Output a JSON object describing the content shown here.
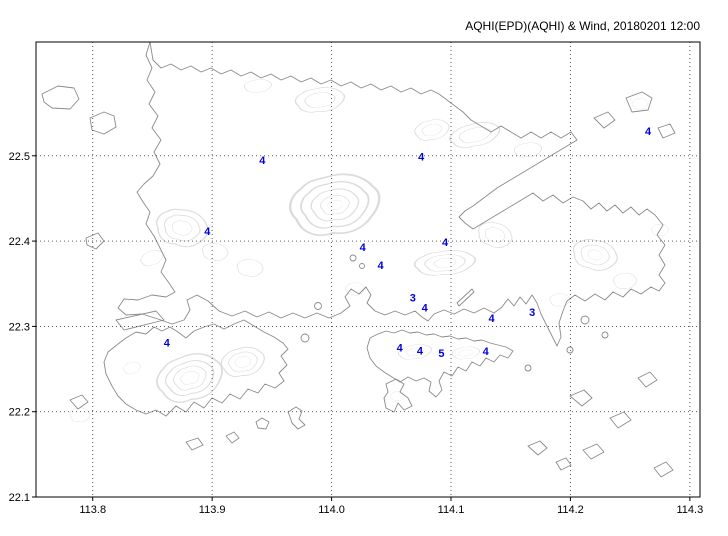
{
  "chart_data": {
    "type": "map-scatter",
    "title": "AQHI(EPD)(AQHI) & Wind, 20180201 12:00",
    "region_style": "coastline contour map with dotted lat/lon grid",
    "marker_color": "#0000dd",
    "grid": "dotted",
    "x_axis": {
      "label": "",
      "range": [
        113.7525,
        114.3085
      ],
      "ticks": [
        113.8,
        113.9,
        114.0,
        114.1,
        114.2,
        114.3
      ]
    },
    "y_axis": {
      "label": "",
      "range": [
        22.1,
        22.6334
      ],
      "ticks": [
        22.1,
        22.2,
        22.3,
        22.4,
        22.5
      ]
    },
    "stations": [
      {
        "lon": 113.942,
        "lat": 22.495,
        "aqhi": 4
      },
      {
        "lon": 114.075,
        "lat": 22.499,
        "aqhi": 4
      },
      {
        "lon": 114.265,
        "lat": 22.529,
        "aqhi": 4
      },
      {
        "lon": 113.896,
        "lat": 22.412,
        "aqhi": 4
      },
      {
        "lon": 114.026,
        "lat": 22.393,
        "aqhi": 4
      },
      {
        "lon": 114.041,
        "lat": 22.372,
        "aqhi": 4
      },
      {
        "lon": 114.095,
        "lat": 22.399,
        "aqhi": 4
      },
      {
        "lon": 114.068,
        "lat": 22.334,
        "aqhi": 3
      },
      {
        "lon": 114.078,
        "lat": 22.322,
        "aqhi": 4
      },
      {
        "lon": 114.134,
        "lat": 22.31,
        "aqhi": 4
      },
      {
        "lon": 114.168,
        "lat": 22.317,
        "aqhi": 3
      },
      {
        "lon": 113.862,
        "lat": 22.281,
        "aqhi": 4
      },
      {
        "lon": 114.057,
        "lat": 22.275,
        "aqhi": 4
      },
      {
        "lon": 114.074,
        "lat": 22.272,
        "aqhi": 4
      },
      {
        "lon": 114.092,
        "lat": 22.269,
        "aqhi": 5
      },
      {
        "lon": 114.129,
        "lat": 22.271,
        "aqhi": 4
      }
    ]
  }
}
